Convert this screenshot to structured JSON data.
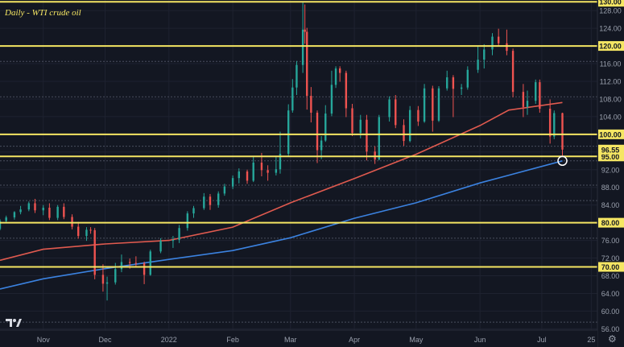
{
  "chart_data": {
    "type": "candlestick",
    "title": "Daily - WTI crude oil",
    "ylim": [
      56,
      130
    ],
    "y_ticks": [
      56,
      60,
      64,
      68,
      72,
      76,
      80,
      84,
      88,
      92,
      96,
      100,
      104,
      108,
      112,
      116,
      120,
      124,
      128
    ],
    "x_ticks": [
      {
        "label": "Nov",
        "date": "2021-11-01"
      },
      {
        "label": "Dec",
        "date": "2021-12-01"
      },
      {
        "label": "2022",
        "date": "2022-01-01"
      },
      {
        "label": "Feb",
        "date": "2022-02-01"
      },
      {
        "label": "Mar",
        "date": "2022-03-01"
      },
      {
        "label": "Apr",
        "date": "2022-04-01"
      },
      {
        "label": "May",
        "date": "2022-05-01"
      },
      {
        "label": "Jun",
        "date": "2022-06-01"
      },
      {
        "label": "Jul",
        "date": "2022-07-01"
      },
      {
        "label": "25",
        "date": "2022-07-25"
      }
    ],
    "horizontal_levels": [
      {
        "label": "130.00",
        "value": 130.0,
        "color": "#f5e663"
      },
      {
        "label": "120.00",
        "value": 120.0,
        "color": "#f5e663"
      },
      {
        "label": "100.00",
        "value": 100.0,
        "color": "#f5e663"
      },
      {
        "label": "95.00",
        "value": 95.0,
        "color": "#f5e663"
      },
      {
        "label": "80.00",
        "value": 80.0,
        "color": "#f5e663"
      },
      {
        "label": "70.00",
        "value": 70.0,
        "color": "#f5e663"
      }
    ],
    "dotted_levels": [
      116.5,
      108.5,
      97.3,
      94.0,
      88.5,
      85.0,
      76.5,
      57.5
    ],
    "last_price": {
      "label": "96.55",
      "value": 96.55
    },
    "highlight": {
      "date": "2022-07-11",
      "value": 94.0
    },
    "ohlc": [
      [
        "2021-10-11",
        78.6,
        80.8,
        78.3,
        80.4
      ],
      [
        "2021-10-14",
        80.4,
        81.6,
        79.9,
        81.2
      ],
      [
        "2021-10-18",
        81.2,
        82.6,
        80.7,
        82.4
      ],
      [
        "2021-10-21",
        82.4,
        83.8,
        81.9,
        83.0
      ],
      [
        "2021-10-25",
        83.0,
        84.8,
        82.6,
        84.4
      ],
      [
        "2021-10-28",
        84.4,
        85.4,
        82.2,
        82.8
      ],
      [
        "2021-11-01",
        82.8,
        84.0,
        81.7,
        83.4
      ],
      [
        "2021-11-04",
        83.4,
        84.4,
        80.6,
        81.1
      ],
      [
        "2021-11-08",
        81.1,
        84.0,
        80.6,
        83.6
      ],
      [
        "2021-11-11",
        83.6,
        84.4,
        80.8,
        81.3
      ],
      [
        "2021-11-15",
        81.3,
        81.9,
        78.5,
        79.1
      ],
      [
        "2021-11-18",
        79.1,
        80.2,
        76.4,
        77.0
      ],
      [
        "2021-11-22",
        77.0,
        79.0,
        75.9,
        78.4
      ],
      [
        "2021-11-24",
        78.4,
        79.0,
        77.5,
        78.3
      ],
      [
        "2021-11-26",
        78.3,
        78.8,
        67.2,
        68.2
      ],
      [
        "2021-11-30",
        68.2,
        70.6,
        64.4,
        66.2
      ],
      [
        "2021-12-02",
        66.2,
        67.8,
        62.4,
        66.5
      ],
      [
        "2021-12-06",
        66.5,
        70.9,
        66.0,
        69.5
      ],
      [
        "2021-12-09",
        69.5,
        72.8,
        68.8,
        71.1
      ],
      [
        "2021-12-13",
        71.1,
        71.9,
        69.6,
        70.9
      ],
      [
        "2021-12-16",
        70.9,
        72.4,
        69.9,
        70.8
      ],
      [
        "2021-12-20",
        70.8,
        71.2,
        66.1,
        68.2
      ],
      [
        "2021-12-23",
        68.2,
        73.9,
        68.0,
        73.5
      ],
      [
        "2021-12-28",
        73.5,
        76.5,
        73.1,
        75.9
      ],
      [
        "2022-01-03",
        75.9,
        77.0,
        74.3,
        76.1
      ],
      [
        "2022-01-06",
        76.1,
        79.5,
        75.4,
        78.8
      ],
      [
        "2022-01-10",
        78.8,
        82.6,
        78.2,
        82.1
      ],
      [
        "2022-01-13",
        82.1,
        83.8,
        81.1,
        83.3
      ],
      [
        "2022-01-18",
        83.3,
        86.7,
        82.9,
        85.9
      ],
      [
        "2022-01-21",
        85.9,
        86.5,
        82.9,
        84.0
      ],
      [
        "2022-01-25",
        84.0,
        87.1,
        83.4,
        86.6
      ],
      [
        "2022-01-28",
        86.6,
        88.8,
        86.1,
        88.2
      ],
      [
        "2022-02-01",
        88.2,
        90.7,
        87.6,
        90.1
      ],
      [
        "2022-02-04",
        90.1,
        92.3,
        88.9,
        91.6
      ],
      [
        "2022-02-08",
        91.6,
        92.0,
        88.8,
        89.5
      ],
      [
        "2022-02-11",
        89.5,
        94.9,
        89.2,
        93.6
      ],
      [
        "2022-02-15",
        93.6,
        95.8,
        90.5,
        91.9
      ],
      [
        "2022-02-18",
        91.9,
        93.0,
        89.5,
        91.3
      ],
      [
        "2022-02-22",
        91.3,
        95.1,
        90.7,
        92.1
      ],
      [
        "2022-02-24",
        92.1,
        100.6,
        91.1,
        95.6
      ],
      [
        "2022-02-28",
        95.6,
        106.8,
        95.1,
        105.4
      ],
      [
        "2022-03-02",
        105.4,
        112.5,
        104.9,
        110.6
      ],
      [
        "2022-03-04",
        110.6,
        116.6,
        108.9,
        115.7
      ],
      [
        "2022-03-07",
        115.7,
        130.0,
        113.9,
        123.7
      ],
      [
        "2022-03-08",
        123.7,
        129.4,
        120.5,
        123.2
      ],
      [
        "2022-03-09",
        123.2,
        124.1,
        105.6,
        108.7
      ],
      [
        "2022-03-11",
        108.7,
        110.7,
        102.7,
        104.9
      ],
      [
        "2022-03-14",
        104.9,
        105.4,
        93.5,
        96.4
      ],
      [
        "2022-03-16",
        96.4,
        99.6,
        94.4,
        98.6
      ],
      [
        "2022-03-18",
        98.6,
        106.6,
        98.3,
        104.7
      ],
      [
        "2022-03-21",
        104.7,
        114.4,
        104.1,
        111.2
      ],
      [
        "2022-03-23",
        111.2,
        115.4,
        110.5,
        114.9
      ],
      [
        "2022-03-25",
        114.9,
        115.4,
        111.9,
        113.9
      ],
      [
        "2022-03-28",
        113.9,
        114.4,
        103.9,
        105.9
      ],
      [
        "2022-03-31",
        105.9,
        106.9,
        99.6,
        100.3
      ],
      [
        "2022-04-04",
        100.3,
        104.4,
        99.1,
        103.3
      ],
      [
        "2022-04-07",
        103.3,
        104.4,
        94.1,
        96.1
      ],
      [
        "2022-04-11",
        96.1,
        97.3,
        93.3,
        94.3
      ],
      [
        "2022-04-13",
        94.3,
        104.4,
        94.1,
        103.9
      ],
      [
        "2022-04-18",
        103.9,
        108.6,
        102.9,
        107.9
      ],
      [
        "2022-04-21",
        107.9,
        108.9,
        101.4,
        102.1
      ],
      [
        "2022-04-25",
        102.1,
        103.4,
        97.4,
        98.5
      ],
      [
        "2022-04-28",
        98.5,
        106.4,
        98.2,
        105.5
      ],
      [
        "2022-05-02",
        105.5,
        106.4,
        101.9,
        102.9
      ],
      [
        "2022-05-05",
        102.9,
        111.4,
        102.6,
        110.4
      ],
      [
        "2022-05-09",
        110.4,
        111.0,
        100.6,
        103.1
      ],
      [
        "2022-05-12",
        103.1,
        110.9,
        102.8,
        110.4
      ],
      [
        "2022-05-16",
        110.4,
        114.4,
        109.9,
        112.9
      ],
      [
        "2022-05-19",
        112.9,
        113.4,
        103.9,
        110.3
      ],
      [
        "2022-05-23",
        110.3,
        111.4,
        108.9,
        110.6
      ],
      [
        "2022-05-26",
        110.6,
        115.4,
        110.1,
        114.6
      ],
      [
        "2022-05-31",
        114.6,
        119.9,
        113.9,
        116.9
      ],
      [
        "2022-06-03",
        116.9,
        120.4,
        114.9,
        119.2
      ],
      [
        "2022-06-07",
        119.2,
        122.9,
        117.9,
        122.1
      ],
      [
        "2022-06-10",
        122.1,
        123.9,
        119.9,
        120.6
      ],
      [
        "2022-06-14",
        120.6,
        123.7,
        117.9,
        118.9
      ],
      [
        "2022-06-17",
        118.9,
        119.4,
        108.4,
        109.6
      ],
      [
        "2022-06-22",
        109.6,
        111.4,
        103.9,
        106.2
      ],
      [
        "2022-06-24",
        106.2,
        109.9,
        104.4,
        107.6
      ],
      [
        "2022-06-28",
        107.6,
        112.4,
        106.9,
        111.8
      ],
      [
        "2022-06-30",
        111.8,
        112.4,
        104.9,
        105.8
      ],
      [
        "2022-07-05",
        105.8,
        107.9,
        97.9,
        99.5
      ],
      [
        "2022-07-07",
        99.5,
        105.4,
        98.9,
        104.8
      ],
      [
        "2022-07-11",
        104.8,
        104.9,
        95.2,
        96.55
      ]
    ],
    "series": [
      {
        "name": "",
        "color": "#e05a4f",
        "points": [
          [
            "2021-10-11",
            71.5
          ],
          [
            "2021-11-01",
            74.0
          ],
          [
            "2021-12-01",
            75.2
          ],
          [
            "2022-01-01",
            76.0
          ],
          [
            "2022-02-01",
            79.0
          ],
          [
            "2022-03-01",
            84.5
          ],
          [
            "2022-04-01",
            90.0
          ],
          [
            "2022-05-01",
            95.5
          ],
          [
            "2022-06-01",
            102.0
          ],
          [
            "2022-06-15",
            105.5
          ],
          [
            "2022-07-11",
            107.2
          ]
        ]
      },
      {
        "name": "",
        "color": "#3b82e0",
        "points": [
          [
            "2021-10-11",
            65.0
          ],
          [
            "2021-11-01",
            67.3
          ],
          [
            "2021-12-01",
            69.6
          ],
          [
            "2022-01-01",
            71.7
          ],
          [
            "2022-02-01",
            73.7
          ],
          [
            "2022-03-01",
            76.6
          ],
          [
            "2022-04-01",
            81.0
          ],
          [
            "2022-05-01",
            84.5
          ],
          [
            "2022-06-01",
            89.0
          ],
          [
            "2022-07-11",
            94.0
          ]
        ]
      }
    ]
  }
}
